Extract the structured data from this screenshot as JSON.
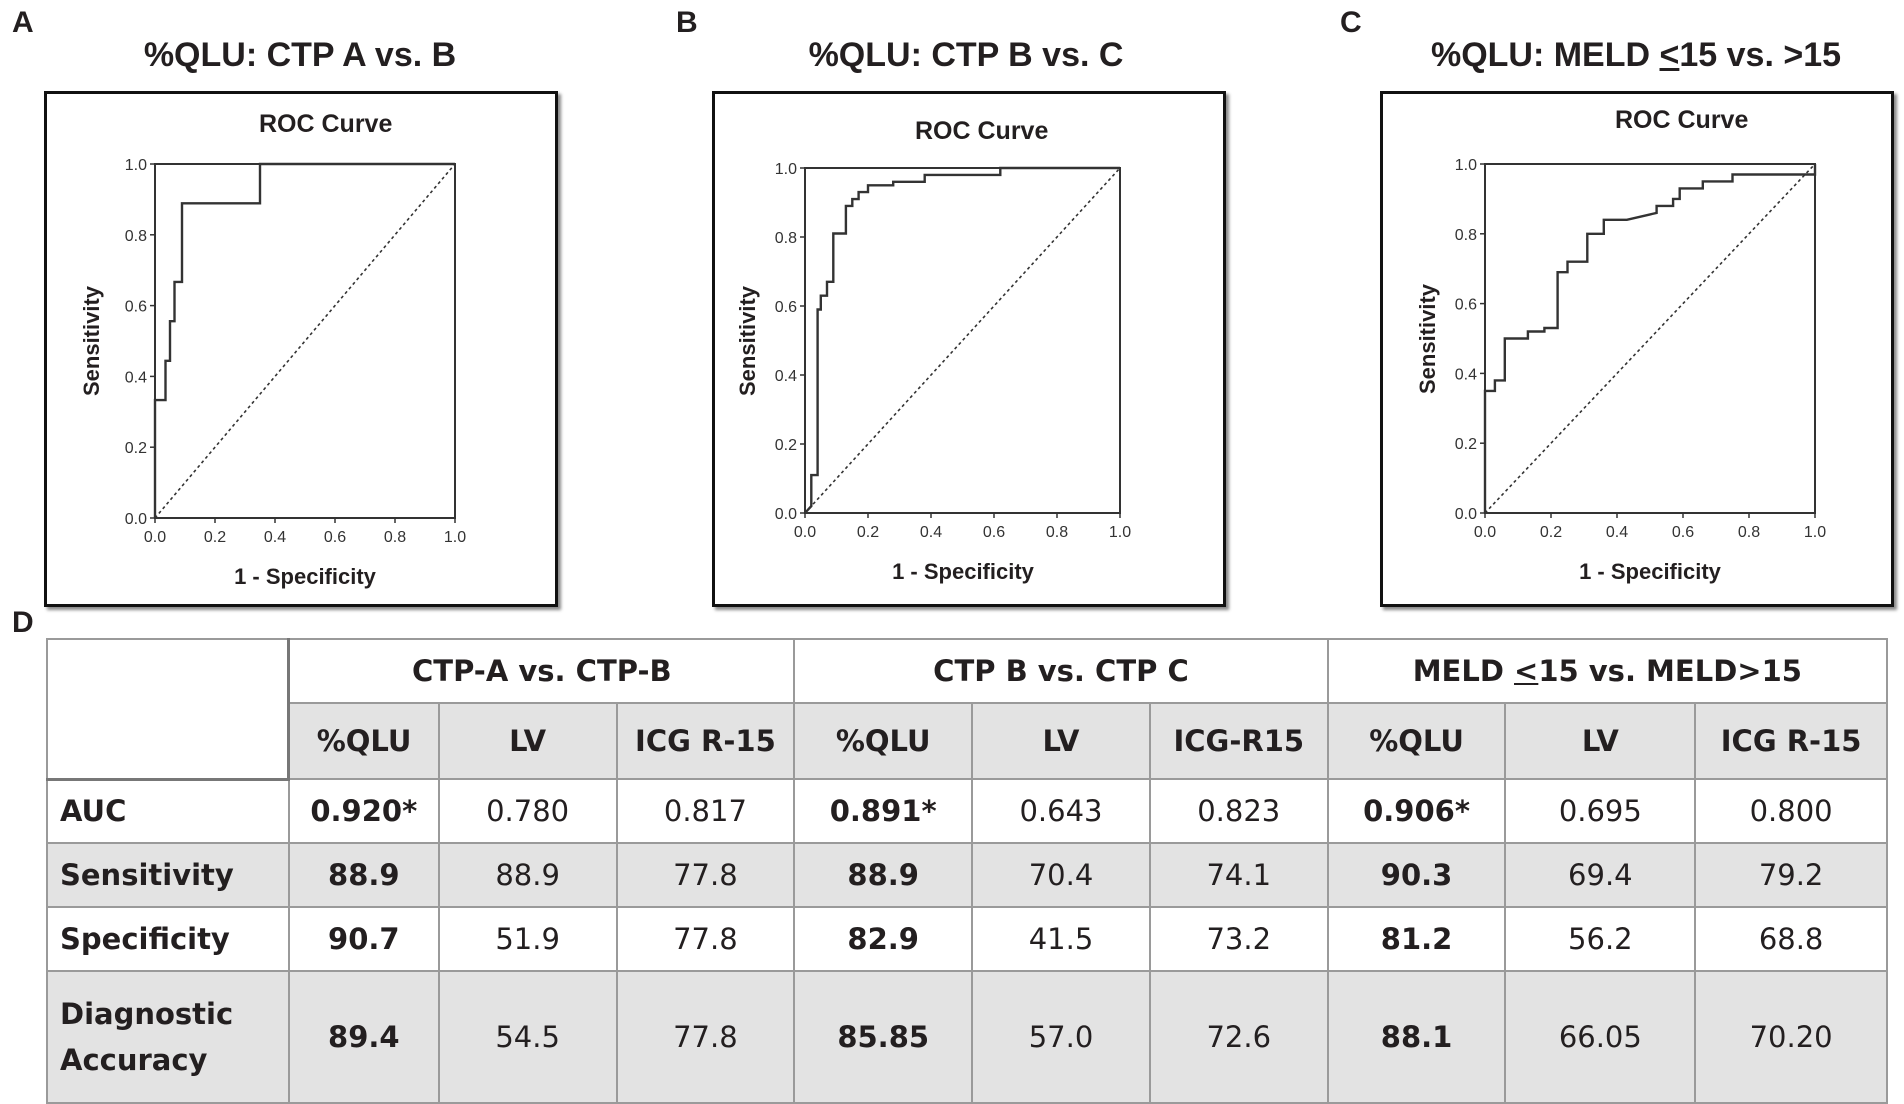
{
  "panels": [
    {
      "letter": "A",
      "title": "%QLU: CTP A vs. B"
    },
    {
      "letter": "B",
      "title": "%QLU: CTP B vs. C"
    },
    {
      "letter": "C",
      "title_pre": "%QLU: MELD ",
      "title_u": "<",
      "title_post": "15 vs. >15"
    }
  ],
  "table": {
    "letter": "D",
    "groups": [
      {
        "label": "CTP-A vs. CTP-B"
      },
      {
        "label": "CTP B vs. CTP C"
      },
      {
        "label_pre": "MELD ",
        "label_u": "<",
        "label_post": "15 vs. MELD>15"
      }
    ],
    "subheaders": [
      "%QLU",
      "LV",
      "ICG R-15",
      "%QLU",
      "LV",
      "ICG-R15",
      "%QLU",
      "LV",
      "ICG R-15"
    ],
    "rows": [
      {
        "label": "AUC",
        "values": [
          "0.920*",
          "0.780",
          "0.817",
          "0.891*",
          "0.643",
          "0.823",
          "0.906*",
          "0.695",
          "0.800"
        ]
      },
      {
        "label": "Sensitivity",
        "values": [
          "88.9",
          "88.9",
          "77.8",
          "88.9",
          "70.4",
          "74.1",
          "90.3",
          "69.4",
          "79.2"
        ]
      },
      {
        "label": "Specificity",
        "values": [
          "90.7",
          "51.9",
          "77.8",
          "82.9",
          "41.5",
          "73.2",
          "81.2",
          "56.2",
          "68.8"
        ]
      },
      {
        "label_line1": "Diagnostic",
        "label_line2": "Accuracy",
        "values": [
          "89.4",
          "54.5",
          "77.8",
          "85.85",
          "57.0",
          "72.6",
          "88.1",
          "66.05",
          "70.20"
        ]
      }
    ]
  },
  "chart_data": [
    {
      "type": "line",
      "title": "ROC Curve",
      "xlabel": "1 - Specificity",
      "ylabel": "Sensitivity",
      "xlim": [
        0,
        1
      ],
      "ylim": [
        0,
        1
      ],
      "xticks": [
        "0.0",
        "0.2",
        "0.4",
        "0.6",
        "0.8",
        "1.0"
      ],
      "yticks": [
        "0.0",
        "0.2",
        "0.4",
        "0.6",
        "0.8",
        "1.0"
      ],
      "series": [
        {
          "name": "ROC",
          "style": "solid",
          "x": [
            0,
            0,
            0.035,
            0.035,
            0.05,
            0.05,
            0.065,
            0.065,
            0.09,
            0.09,
            0.35,
            0.35,
            1.0
          ],
          "y": [
            0,
            0.333,
            0.333,
            0.444,
            0.444,
            0.556,
            0.556,
            0.667,
            0.667,
            0.889,
            0.889,
            1.0,
            1.0
          ]
        },
        {
          "name": "Reference",
          "style": "dashed",
          "x": [
            0,
            1
          ],
          "y": [
            0,
            1
          ]
        }
      ]
    },
    {
      "type": "line",
      "title": "ROC Curve",
      "xlabel": "1 - Specificity",
      "ylabel": "Sensitivity",
      "xlim": [
        0,
        1
      ],
      "ylim": [
        0,
        1
      ],
      "xticks": [
        "0.0",
        "0.2",
        "0.4",
        "0.6",
        "0.8",
        "1.0"
      ],
      "yticks": [
        "0.0",
        "0.2",
        "0.4",
        "0.6",
        "0.8",
        "1.0"
      ],
      "series": [
        {
          "name": "ROC",
          "style": "solid",
          "x": [
            0,
            0.02,
            0.02,
            0.04,
            0.04,
            0.05,
            0.05,
            0.07,
            0.07,
            0.09,
            0.09,
            0.13,
            0.13,
            0.15,
            0.15,
            0.17,
            0.17,
            0.2,
            0.2,
            0.28,
            0.28,
            0.38,
            0.38,
            0.62,
            0.62,
            1.0
          ],
          "y": [
            0,
            0.02,
            0.11,
            0.11,
            0.59,
            0.59,
            0.63,
            0.63,
            0.67,
            0.67,
            0.81,
            0.81,
            0.89,
            0.89,
            0.91,
            0.91,
            0.93,
            0.93,
            0.95,
            0.95,
            0.96,
            0.96,
            0.98,
            0.98,
            1.0,
            1.0
          ]
        },
        {
          "name": "Reference",
          "style": "dashed",
          "x": [
            0,
            1
          ],
          "y": [
            0,
            1
          ]
        }
      ]
    },
    {
      "type": "line",
      "title": "ROC Curve",
      "xlabel": "1 - Specificity",
      "ylabel": "Sensitivity",
      "xlim": [
        0,
        1
      ],
      "ylim": [
        0,
        1
      ],
      "xticks": [
        "0.0",
        "0.2",
        "0.4",
        "0.6",
        "0.8",
        "1.0"
      ],
      "yticks": [
        "0.0",
        "0.2",
        "0.4",
        "0.6",
        "0.8",
        "1.0"
      ],
      "series": [
        {
          "name": "ROC",
          "style": "solid",
          "x": [
            0,
            0,
            0.03,
            0.03,
            0.06,
            0.06,
            0.13,
            0.13,
            0.18,
            0.18,
            0.22,
            0.22,
            0.25,
            0.25,
            0.31,
            0.31,
            0.36,
            0.36,
            0.43,
            0.43,
            0.52,
            0.52,
            0.57,
            0.57,
            0.59,
            0.59,
            0.66,
            0.66,
            0.75,
            0.75,
            1.0,
            1.0
          ],
          "y": [
            0,
            0.35,
            0.35,
            0.38,
            0.38,
            0.5,
            0.5,
            0.52,
            0.52,
            0.53,
            0.53,
            0.69,
            0.69,
            0.72,
            0.72,
            0.8,
            0.8,
            0.84,
            0.84,
            0.84,
            0.86,
            0.88,
            0.88,
            0.9,
            0.9,
            0.93,
            0.93,
            0.95,
            0.95,
            0.97,
            0.97,
            1.0
          ]
        },
        {
          "name": "Reference",
          "style": "dashed",
          "x": [
            0,
            1
          ],
          "y": [
            0,
            1
          ]
        }
      ]
    }
  ]
}
